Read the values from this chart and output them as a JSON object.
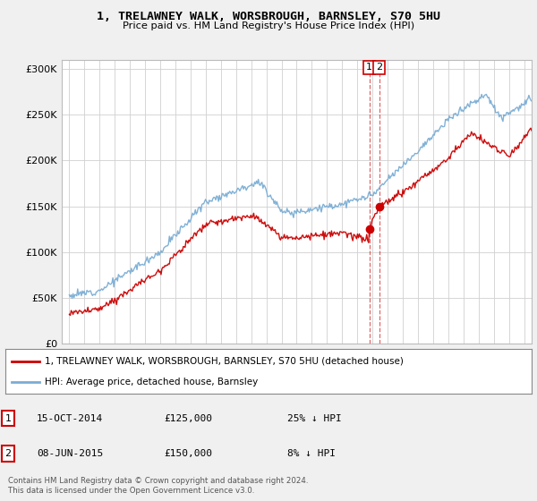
{
  "title": "1, TRELAWNEY WALK, WORSBROUGH, BARNSLEY, S70 5HU",
  "subtitle": "Price paid vs. HM Land Registry's House Price Index (HPI)",
  "legend_label_red": "1, TRELAWNEY WALK, WORSBROUGH, BARNSLEY, S70 5HU (detached house)",
  "legend_label_blue": "HPI: Average price, detached house, Barnsley",
  "annotation1_date": "15-OCT-2014",
  "annotation1_price": "£125,000",
  "annotation1_hpi": "25% ↓ HPI",
  "annotation2_date": "08-JUN-2015",
  "annotation2_price": "£150,000",
  "annotation2_hpi": "8% ↓ HPI",
  "footnote": "Contains HM Land Registry data © Crown copyright and database right 2024.\nThis data is licensed under the Open Government Licence v3.0.",
  "red_color": "#cc0000",
  "blue_color": "#7aadd4",
  "bg_color": "#f0f0f0",
  "plot_bg": "#ffffff",
  "ylim": [
    0,
    310000
  ],
  "yticks": [
    0,
    50000,
    100000,
    150000,
    200000,
    250000,
    300000
  ],
  "sale1_year": 2014.79,
  "sale1_price": 125000,
  "sale2_year": 2015.44,
  "sale2_price": 150000,
  "xmin": 1994.5,
  "xmax": 2025.5
}
